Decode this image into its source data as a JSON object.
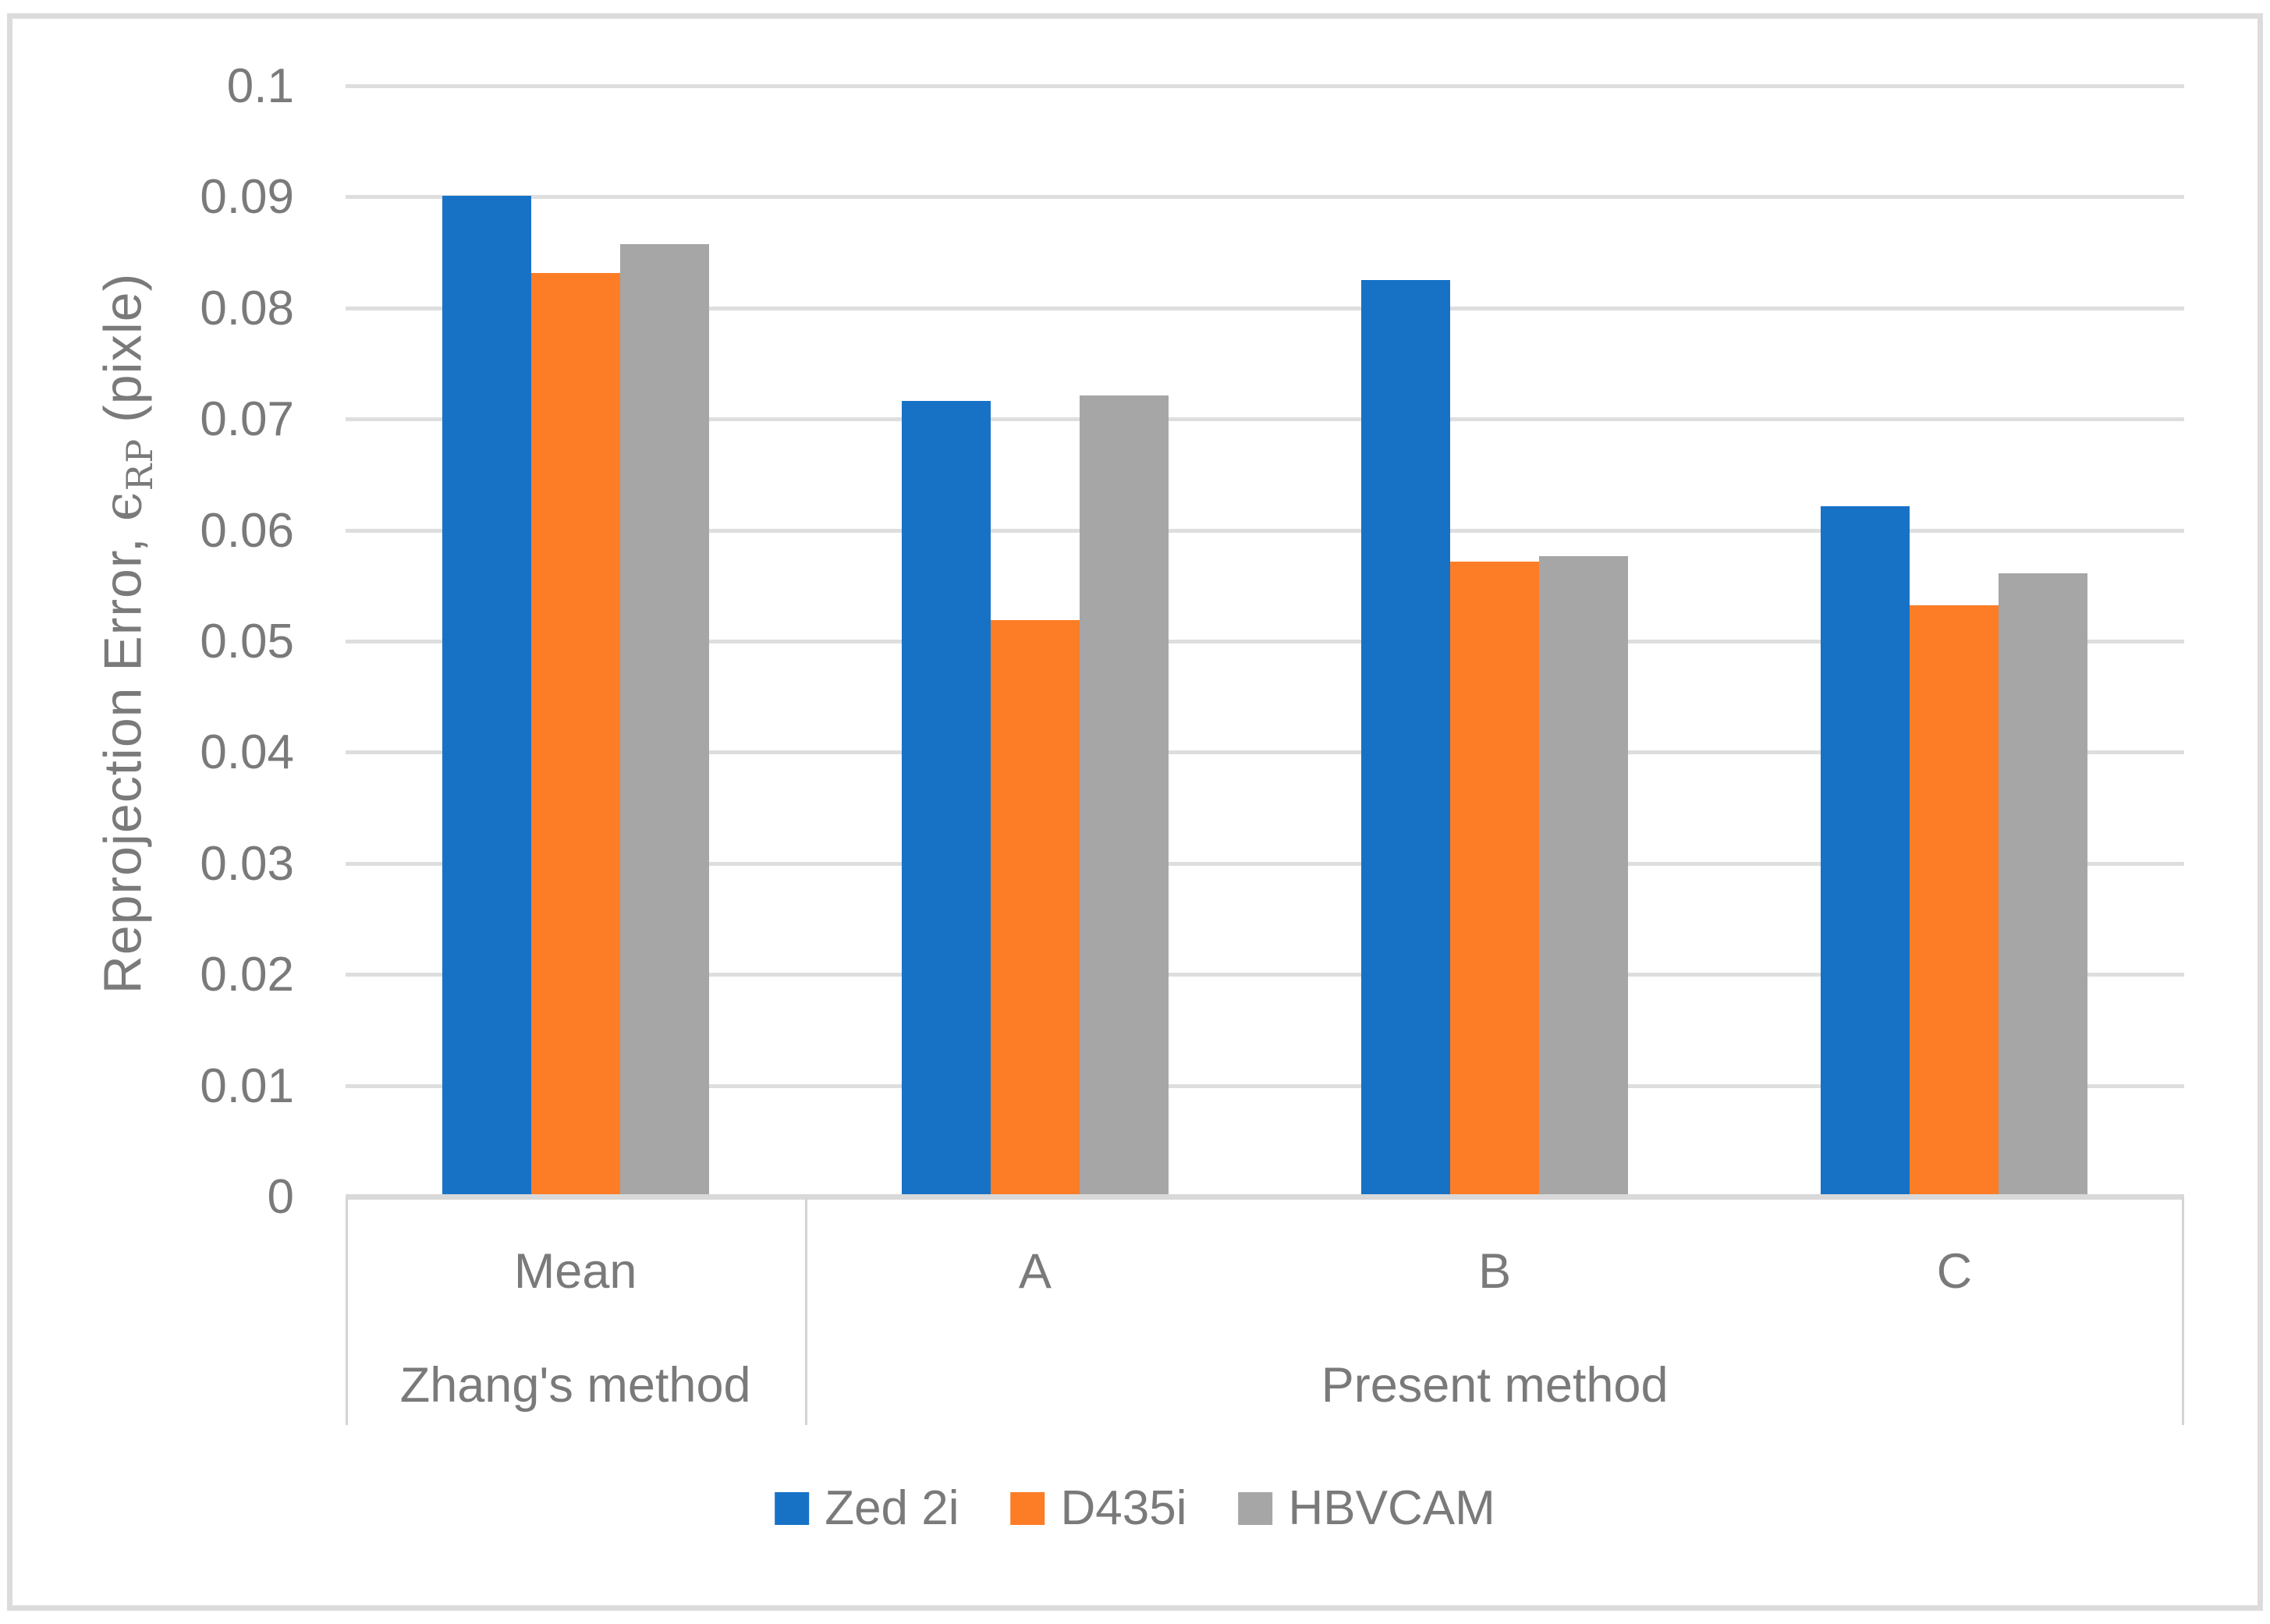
{
  "figure": {
    "background": "#ffffff",
    "border_color": "#DCDCDC",
    "text_color": "#7A7A7A",
    "gridline_color": "#DEDEDE",
    "axis_line_color": "#D9D9D9"
  },
  "y_axis": {
    "title_prefix": "Reprojection Error, ",
    "title_symbol": "ϵ",
    "title_sub": "RP",
    "title_suffix": " (pixle)",
    "ticks": [
      "0",
      "0.01",
      "0.02",
      "0.03",
      "0.04",
      "0.05",
      "0.06",
      "0.07",
      "0.08",
      "0.09",
      "0.1"
    ]
  },
  "x_axis": {
    "categories": [
      "Mean",
      "A",
      "B",
      "C"
    ],
    "method_groups": [
      {
        "label": "Zhang's method",
        "span": 1
      },
      {
        "label": "Present method",
        "span": 3
      }
    ]
  },
  "chart_data": {
    "type": "bar",
    "title": "",
    "categories": [
      "Mean",
      "A",
      "B",
      "C"
    ],
    "category_group_labels": [
      {
        "label": "Zhang's method",
        "categories": [
          "Mean"
        ]
      },
      {
        "label": "Present method",
        "categories": [
          "A",
          "B",
          "C"
        ]
      }
    ],
    "series": [
      {
        "name": "Zed 2i",
        "color": "#1772C6",
        "values": [
          0.0902,
          0.0717,
          0.0826,
          0.0622
        ]
      },
      {
        "name": "D435i",
        "color": "#FC7D26",
        "values": [
          0.0832,
          0.052,
          0.0572,
          0.0533
        ]
      },
      {
        "name": "HBVCAM",
        "color": "#A6A6A6",
        "values": [
          0.0858,
          0.0722,
          0.0577,
          0.0562
        ]
      }
    ],
    "xlabel": "",
    "ylabel": "Reprojection Error, ϵRP (pixle)",
    "ylim": [
      0,
      0.1
    ],
    "ytick_step": 0.01,
    "grid": "horizontal-only",
    "legend_position": "bottom"
  }
}
